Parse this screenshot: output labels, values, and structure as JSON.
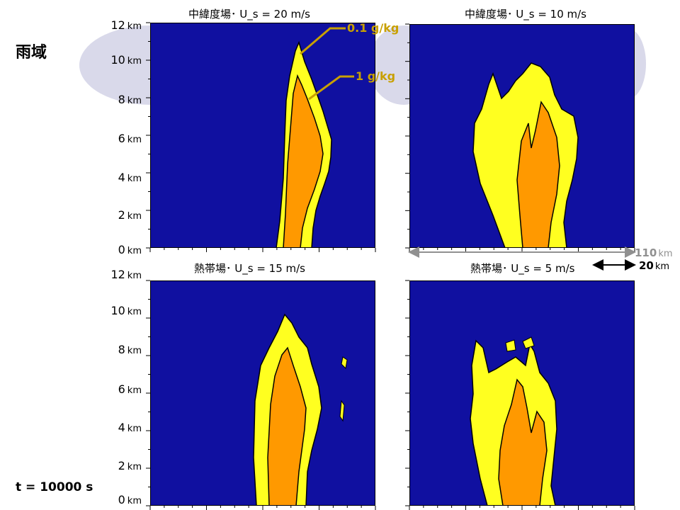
{
  "page": {
    "title": "雨域",
    "time_label": "t = 10000 s"
  },
  "colors": {
    "background": "#1010a0",
    "low_contour": "#ffff20",
    "high_contour": "#ff9900",
    "outline": "#000000",
    "annotation": "#c8a000",
    "scale_gray": "#909090",
    "decoration": "#d9d9ea"
  },
  "chart_data": [
    {
      "type": "heatmap",
      "title": "中緯度場･ U_s = 20 m/s",
      "y_ticks": [
        "12",
        "10",
        "8",
        "6",
        "4",
        "2",
        "0"
      ],
      "y_unit": "km",
      "ylim": [
        0,
        12
      ],
      "contour_levels": [
        "0.1 g/kg",
        "1 g/kg"
      ],
      "annotations": [
        {
          "text": "0.1 g/kg",
          "level": 0.1
        },
        {
          "text": "1 g/kg",
          "level": 1
        }
      ]
    },
    {
      "type": "heatmap",
      "title": "中緯度場･ U_s = 10 m/s",
      "ylim": [
        0,
        12
      ],
      "scale_bar": {
        "value": "110",
        "unit": "km"
      }
    },
    {
      "type": "heatmap",
      "title": "熱帯場･ U_s = 15 m/s",
      "y_ticks": [
        "12",
        "10",
        "8",
        "6",
        "4",
        "2",
        "0"
      ],
      "y_unit": "km",
      "ylim": [
        0,
        12
      ]
    },
    {
      "type": "heatmap",
      "title": "熱帯場･ U_s = 5 m/s",
      "ylim": [
        0,
        12
      ],
      "scale_bar": {
        "value": "20",
        "unit": "km"
      }
    }
  ]
}
